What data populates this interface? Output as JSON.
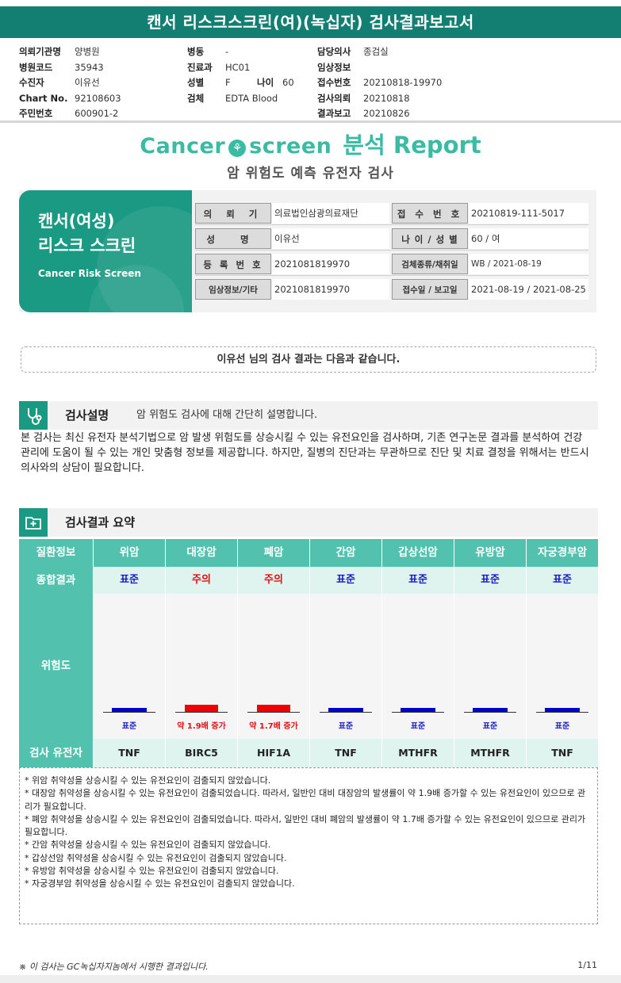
{
  "title": "캔서 리스크스크린(여)(녹십자) 검사결과보고서",
  "info": {
    "col1": [
      {
        "label": "의뢰기관명",
        "value": "양병원"
      },
      {
        "label": "병원코드",
        "value": "35943"
      },
      {
        "label": "수진자",
        "value": "이유선"
      },
      {
        "label": "Chart No.",
        "value": "92108603"
      },
      {
        "label": "주민번호",
        "value": "600901-2"
      }
    ],
    "col2": [
      {
        "label": "병동",
        "value": "-"
      },
      {
        "label": "진료과",
        "value": "HC01"
      },
      {
        "label": "성별",
        "value": "F",
        "age_label": "나이",
        "age_value": "60"
      },
      {
        "label": "검체",
        "value": "EDTA Blood"
      }
    ],
    "col3": [
      {
        "label": "담당의사",
        "value": "종검실"
      },
      {
        "label": "임상정보",
        "value": ""
      },
      {
        "label": "접수번호",
        "value": "20210818-19970"
      },
      {
        "label": "검사의뢰",
        "value": "20210818"
      },
      {
        "label": "결과보고",
        "value": "20210826"
      }
    ]
  },
  "logo": {
    "cancer": "Cancer",
    "screen": "screen",
    "report": "분석 Report"
  },
  "subtitle": "암 위험도 예측 유전자 검사",
  "card": {
    "line1": "캔서(여성)",
    "line2": "리스크 스크린",
    "line3": "Cancer Risk Screen"
  },
  "patient_table": [
    {
      "l1": "의 뢰 기 관",
      "v1": "의료법인삼광의료재단",
      "l2": "접 수 번 호",
      "v2": "20210819-111-5017"
    },
    {
      "l1": "성 명",
      "v1": "이유선",
      "l2": "나 이 / 성 별",
      "v2": "60 / 여"
    },
    {
      "l1": "등 록 번 호",
      "v1": "2021081819970",
      "l2": "검체종류/채취일",
      "v2": "WB / 2021-08-19"
    },
    {
      "l1": "임상정보/기타",
      "v1": "2021081819970",
      "l2": "접수일 / 보고일",
      "v2": "2021-08-19 / 2021-08-25"
    }
  ],
  "result_intro": "이유선 님의 검사 결과는 다음과 같습니다.",
  "section1": {
    "title": "검사설명",
    "desc": "암 위험도 검사에 대해 간단히 설명합니다.",
    "icon": "stethoscope-icon"
  },
  "description": "본 검사는 최신 유전자 분석기법으로 암 발생 위험도를 상승시킬 수 있는 유전요인을 검사하며, 기존 연구논문 결과를 분석하여 건강 관리에 도움이 될 수 있는 개인 맞춤형 정보를 제공합니다. 하지만, 질병의 진단과는 무관하므로 진단 및 치료 결정을 위해서는 반드시 의사와의 상담이 필요합니다.",
  "section2": {
    "title": "검사결과 요약",
    "icon": "medical-folder-icon"
  },
  "results": {
    "header_label": "질환정보",
    "summary_label": "종합결과",
    "risk_label": "위험도",
    "gene_label": "검사 유전자",
    "colors": {
      "standard": "#0000c8",
      "caution": "#ee0000"
    },
    "cancers": [
      {
        "name": "위암",
        "summary": "표준",
        "status": "standard",
        "risk_text": "표준",
        "gene": "TNF"
      },
      {
        "name": "대장암",
        "summary": "주의",
        "status": "caution",
        "risk_text": "약 1.9배 증가",
        "gene": "BIRC5"
      },
      {
        "name": "폐암",
        "summary": "주의",
        "status": "caution",
        "risk_text": "약 1.7배 증가",
        "gene": "HIF1A"
      },
      {
        "name": "간암",
        "summary": "표준",
        "status": "standard",
        "risk_text": "표준",
        "gene": "TNF"
      },
      {
        "name": "갑상선암",
        "summary": "표준",
        "status": "standard",
        "risk_text": "표준",
        "gene": "MTHFR"
      },
      {
        "name": "유방암",
        "summary": "표준",
        "status": "standard",
        "risk_text": "표준",
        "gene": "MTHFR"
      },
      {
        "name": "자궁경부암",
        "summary": "표준",
        "status": "standard",
        "risk_text": "표준",
        "gene": "TNF"
      }
    ]
  },
  "notes": [
    "* 위암 취약성을 상승시킬 수 있는 유전요인이 검출되지 않았습니다.",
    "* 대장암 취약성을 상승시킬 수 있는 유전요인이 검출되었습니다. 따라서, 일반인 대비 대장암의 발생률이 약 1.9배 증가할 수 있는 유전요인이 있으므로 관리가 필요합니다.",
    "* 폐암 취약성을 상승시킬 수 있는 유전요인이 검출되었습니다. 따라서, 일반인 대비 폐암의 발생률이 약 1.7배 증가할 수 있는 유전요인이 있으므로 관리가 필요합니다.",
    "* 간암 취약성을 상승시킬 수 있는 유전요인이 검출되지 않았습니다.",
    "* 갑상선암 취약성을 상승시킬 수 있는 유전요인이 검출되지 않았습니다.",
    "* 유방암 취약성을 상승시킬 수 있는 유전요인이 검출되지 않았습니다.",
    "* 자궁경부암 취약성을 상승시킬 수 있는 유전요인이 검출되지 않았습니다."
  ],
  "footer": {
    "note": "※ 이 검사는 GC녹십자지놈에서 시행한 결과입니다.",
    "page": "1/11"
  }
}
